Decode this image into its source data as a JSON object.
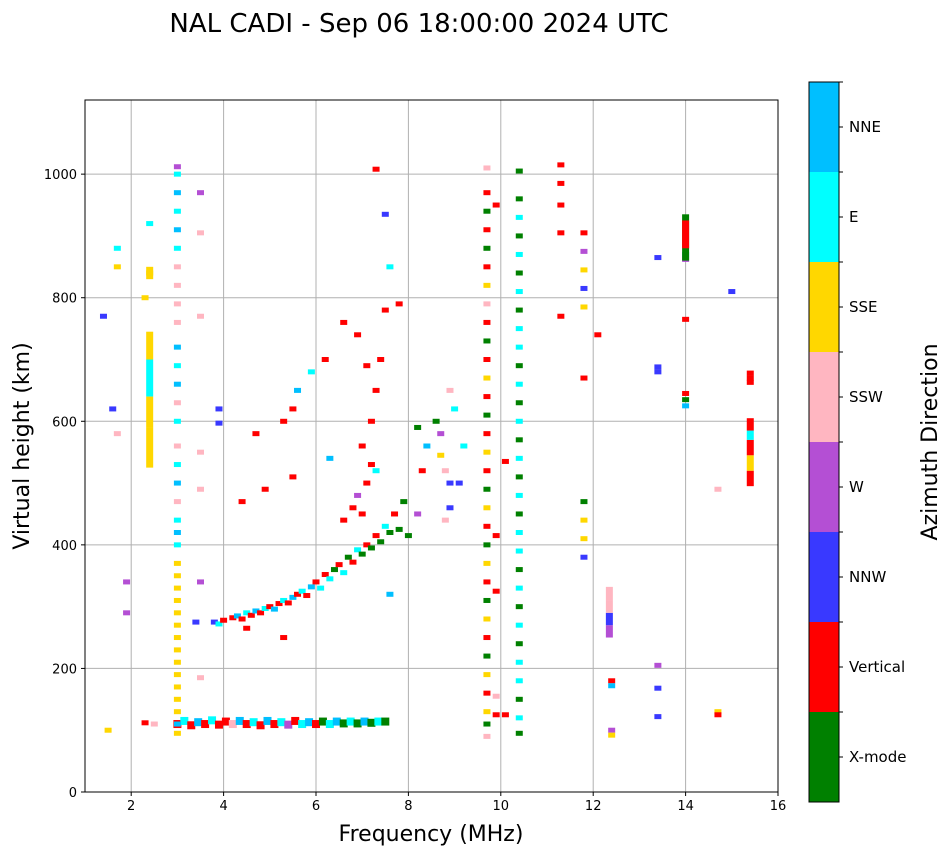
{
  "chart_data": {
    "type": "scatter",
    "title": "NAL CADI - Sep 06 18:00:00 2024 UTC",
    "xlabel": "Frequency (MHz)",
    "ylabel": "Virtual height (km)",
    "xlim": [
      1,
      16
    ],
    "ylim": [
      0,
      1120
    ],
    "xticks": [
      2,
      4,
      6,
      8,
      10,
      12,
      14,
      16
    ],
    "yticks": [
      0,
      200,
      400,
      600,
      800,
      1000
    ],
    "grid": true,
    "colorbar": {
      "label": "Azimuth Direction",
      "placement": "right",
      "categories": [
        "X-mode",
        "Vertical",
        "NNW",
        "W",
        "SSW",
        "SSE",
        "E",
        "NNE"
      ],
      "colors": [
        "#008000",
        "#ff0000",
        "#3939ff",
        "#b44fd4",
        "#ffb6c1",
        "#ffd700",
        "#00ffff",
        "#00bfff"
      ]
    },
    "points_note": "each point: [frequency MHz, virtual height km, category index]",
    "points": [
      [
        3.8,
        275,
        2
      ],
      [
        3.9,
        272,
        6
      ],
      [
        4.0,
        278,
        1
      ],
      [
        4.2,
        282,
        1
      ],
      [
        4.3,
        285,
        7
      ],
      [
        4.4,
        280,
        1
      ],
      [
        4.5,
        290,
        6
      ],
      [
        4.6,
        286,
        1
      ],
      [
        4.7,
        293,
        7
      ],
      [
        4.8,
        290,
        1
      ],
      [
        4.9,
        297,
        6
      ],
      [
        5.0,
        300,
        1
      ],
      [
        5.1,
        296,
        7
      ],
      [
        5.2,
        305,
        1
      ],
      [
        5.3,
        310,
        6
      ],
      [
        5.4,
        306,
        1
      ],
      [
        5.5,
        315,
        7
      ],
      [
        5.6,
        320,
        1
      ],
      [
        5.7,
        325,
        6
      ],
      [
        5.8,
        318,
        1
      ],
      [
        5.9,
        332,
        7
      ],
      [
        6.0,
        340,
        1
      ],
      [
        6.1,
        330,
        6
      ],
      [
        6.2,
        352,
        1
      ],
      [
        6.3,
        345,
        6
      ],
      [
        6.4,
        360,
        0
      ],
      [
        6.5,
        368,
        1
      ],
      [
        6.6,
        355,
        6
      ],
      [
        6.7,
        380,
        0
      ],
      [
        6.8,
        372,
        1
      ],
      [
        6.9,
        392,
        6
      ],
      [
        7.0,
        385,
        0
      ],
      [
        7.1,
        400,
        1
      ],
      [
        7.2,
        395,
        0
      ],
      [
        7.3,
        415,
        1
      ],
      [
        7.4,
        405,
        0
      ],
      [
        7.5,
        430,
        6
      ],
      [
        7.6,
        420,
        0
      ],
      [
        7.7,
        450,
        1
      ],
      [
        7.8,
        425,
        0
      ],
      [
        7.9,
        470,
        0
      ],
      [
        8.0,
        415,
        0
      ],
      [
        6.6,
        440,
        1
      ],
      [
        6.8,
        460,
        1
      ],
      [
        6.9,
        480,
        3
      ],
      [
        7.0,
        450,
        1
      ],
      [
        7.1,
        500,
        1
      ],
      [
        7.2,
        530,
        1
      ],
      [
        7.0,
        560,
        1
      ],
      [
        7.3,
        520,
        6
      ],
      [
        7.2,
        600,
        1
      ],
      [
        7.3,
        650,
        1
      ],
      [
        7.1,
        690,
        1
      ],
      [
        7.4,
        700,
        1
      ],
      [
        6.9,
        740,
        1
      ],
      [
        6.6,
        760,
        1
      ],
      [
        6.2,
        700,
        1
      ],
      [
        5.9,
        680,
        6
      ],
      [
        5.6,
        650,
        7
      ],
      [
        5.5,
        620,
        1
      ],
      [
        5.3,
        600,
        1
      ],
      [
        4.7,
        580,
        1
      ],
      [
        4.9,
        490,
        1
      ],
      [
        4.4,
        470,
        1
      ],
      [
        6.3,
        540,
        7
      ],
      [
        5.5,
        510,
        1
      ],
      [
        5.3,
        250,
        1
      ],
      [
        4.5,
        265,
        1
      ],
      [
        7.6,
        320,
        7
      ],
      [
        7.6,
        850,
        6
      ],
      [
        7.5,
        935,
        2
      ],
      [
        7.3,
        1008,
        1
      ],
      [
        7.5,
        780,
        1
      ],
      [
        7.8,
        790,
        1
      ],
      [
        8.2,
        590,
        0
      ],
      [
        8.3,
        520,
        1
      ],
      [
        8.4,
        560,
        7
      ],
      [
        8.6,
        600,
        0
      ],
      [
        8.7,
        545,
        5
      ],
      [
        8.8,
        520,
        4
      ],
      [
        8.9,
        500,
        2
      ],
      [
        8.9,
        460,
        2
      ],
      [
        8.8,
        440,
        4
      ],
      [
        9.0,
        620,
        6
      ],
      [
        9.1,
        500,
        2
      ],
      [
        9.2,
        560,
        6
      ],
      [
        8.7,
        580,
        3
      ],
      [
        8.2,
        450,
        3
      ],
      [
        8.9,
        650,
        4
      ],
      [
        1.5,
        100,
        5
      ],
      [
        1.7,
        880,
        6
      ],
      [
        1.7,
        850,
        5
      ],
      [
        1.6,
        620,
        2
      ],
      [
        1.7,
        580,
        4
      ],
      [
        1.9,
        340,
        3
      ],
      [
        1.9,
        290,
        3
      ],
      [
        1.4,
        770,
        2
      ],
      [
        2.3,
        800,
        5
      ],
      [
        2.3,
        112,
        1
      ],
      [
        2.5,
        110,
        4
      ],
      [
        2.4,
        920,
        6
      ],
      [
        2.4,
        840,
        5
      ],
      [
        3.5,
        970,
        3
      ],
      [
        3.5,
        905,
        4
      ],
      [
        3.5,
        770,
        4
      ],
      [
        3.5,
        550,
        4
      ],
      [
        3.5,
        490,
        4
      ],
      [
        3.5,
        340,
        3
      ],
      [
        3.5,
        185,
        4
      ],
      [
        3.4,
        275,
        2
      ],
      [
        3.9,
        620,
        2
      ],
      [
        3.9,
        597,
        2
      ],
      [
        11.3,
        1015,
        1
      ],
      [
        11.3,
        985,
        1
      ],
      [
        11.3,
        950,
        1
      ],
      [
        11.3,
        905,
        1
      ],
      [
        11.3,
        770,
        1
      ],
      [
        11.8,
        905,
        1
      ],
      [
        11.8,
        875,
        3
      ],
      [
        11.8,
        845,
        5
      ],
      [
        11.8,
        815,
        2
      ],
      [
        11.8,
        785,
        5
      ],
      [
        11.8,
        670,
        1
      ],
      [
        11.8,
        470,
        0
      ],
      [
        11.8,
        440,
        5
      ],
      [
        11.8,
        410,
        5
      ],
      [
        11.8,
        380,
        2
      ],
      [
        12.1,
        740,
        1
      ],
      [
        12.4,
        180,
        1
      ],
      [
        12.4,
        172,
        7
      ],
      [
        12.4,
        100,
        3
      ],
      [
        12.4,
        92,
        5
      ],
      [
        13.4,
        865,
        2
      ],
      [
        13.4,
        688,
        2
      ],
      [
        13.4,
        680,
        2
      ],
      [
        13.4,
        205,
        3
      ],
      [
        13.4,
        168,
        2
      ],
      [
        13.4,
        122,
        2
      ],
      [
        14.0,
        765,
        1
      ],
      [
        14.0,
        645,
        1
      ],
      [
        14.0,
        635,
        0
      ],
      [
        14.0,
        625,
        7
      ],
      [
        14.0,
        870,
        7
      ],
      [
        14.0,
        862,
        3
      ],
      [
        14.7,
        490,
        4
      ],
      [
        14.7,
        130,
        5
      ],
      [
        14.7,
        125,
        1
      ],
      [
        15.0,
        810,
        2
      ],
      [
        15.4,
        678,
        1
      ],
      [
        15.4,
        670,
        1
      ],
      [
        15.4,
        663,
        1
      ],
      [
        9.9,
        950,
        1
      ],
      [
        10.1,
        535,
        1
      ],
      [
        9.9,
        415,
        1
      ],
      [
        9.9,
        325,
        1
      ],
      [
        9.9,
        125,
        1
      ],
      [
        9.9,
        155,
        4
      ],
      [
        10.1,
        125,
        1
      ]
    ],
    "e_layer_note": "[frequency MHz, virtual height km, category index]",
    "e_layer": [
      [
        3.0,
        110,
        1
      ],
      [
        3.15,
        115,
        6
      ],
      [
        3.3,
        108,
        1
      ],
      [
        3.45,
        113,
        7
      ],
      [
        3.6,
        110,
        1
      ],
      [
        3.75,
        116,
        6
      ],
      [
        3.9,
        109,
        1
      ],
      [
        4.05,
        114,
        1
      ],
      [
        4.2,
        110,
        4
      ],
      [
        4.35,
        115,
        7
      ],
      [
        4.5,
        110,
        1
      ],
      [
        4.65,
        113,
        6
      ],
      [
        4.8,
        108,
        1
      ],
      [
        4.95,
        115,
        7
      ],
      [
        5.1,
        110,
        1
      ],
      [
        5.25,
        113,
        6
      ],
      [
        5.4,
        109,
        3
      ],
      [
        5.55,
        115,
        1
      ],
      [
        5.7,
        110,
        6
      ],
      [
        5.85,
        113,
        7
      ],
      [
        6.0,
        110,
        1
      ],
      [
        6.15,
        114,
        0
      ],
      [
        6.3,
        110,
        6
      ],
      [
        6.45,
        114,
        7
      ],
      [
        6.6,
        111,
        0
      ],
      [
        6.75,
        114,
        6
      ],
      [
        6.9,
        111,
        0
      ],
      [
        7.05,
        114,
        7
      ],
      [
        7.2,
        112,
        0
      ],
      [
        7.35,
        114,
        6
      ],
      [
        7.5,
        114,
        0
      ]
    ],
    "columns_note": "each column: frequency MHz and stacked [height km, category index]",
    "columns": [
      {
        "freq": 3.0,
        "cells": [
          [
            95,
            5
          ],
          [
            110,
            7
          ],
          [
            130,
            5
          ],
          [
            150,
            5
          ],
          [
            170,
            5
          ],
          [
            190,
            5
          ],
          [
            210,
            5
          ],
          [
            230,
            5
          ],
          [
            250,
            5
          ],
          [
            270,
            5
          ],
          [
            290,
            5
          ],
          [
            310,
            5
          ],
          [
            330,
            5
          ],
          [
            350,
            5
          ],
          [
            370,
            5
          ],
          [
            400,
            6
          ],
          [
            420,
            7
          ],
          [
            440,
            6
          ],
          [
            470,
            4
          ],
          [
            500,
            7
          ],
          [
            530,
            6
          ],
          [
            560,
            4
          ],
          [
            600,
            6
          ],
          [
            630,
            4
          ],
          [
            660,
            7
          ],
          [
            690,
            6
          ],
          [
            720,
            7
          ],
          [
            760,
            4
          ],
          [
            790,
            4
          ],
          [
            820,
            4
          ],
          [
            850,
            4
          ],
          [
            880,
            6
          ],
          [
            910,
            7
          ],
          [
            940,
            6
          ],
          [
            970,
            7
          ],
          [
            1000,
            6
          ],
          [
            1012,
            3
          ]
        ]
      },
      {
        "freq": 9.7,
        "cells": [
          [
            90,
            4
          ],
          [
            110,
            0
          ],
          [
            130,
            5
          ],
          [
            160,
            1
          ],
          [
            190,
            5
          ],
          [
            220,
            0
          ],
          [
            250,
            1
          ],
          [
            280,
            5
          ],
          [
            310,
            0
          ],
          [
            340,
            1
          ],
          [
            370,
            5
          ],
          [
            400,
            0
          ],
          [
            430,
            1
          ],
          [
            460,
            5
          ],
          [
            490,
            0
          ],
          [
            520,
            1
          ],
          [
            550,
            5
          ],
          [
            580,
            1
          ],
          [
            610,
            0
          ],
          [
            640,
            1
          ],
          [
            670,
            5
          ],
          [
            700,
            1
          ],
          [
            730,
            0
          ],
          [
            760,
            1
          ],
          [
            790,
            4
          ],
          [
            820,
            5
          ],
          [
            850,
            1
          ],
          [
            880,
            0
          ],
          [
            910,
            1
          ],
          [
            940,
            0
          ],
          [
            970,
            1
          ],
          [
            1010,
            4
          ]
        ]
      },
      {
        "freq": 10.4,
        "cells": [
          [
            95,
            0
          ],
          [
            120,
            6
          ],
          [
            150,
            0
          ],
          [
            180,
            6
          ],
          [
            210,
            6
          ],
          [
            240,
            0
          ],
          [
            270,
            6
          ],
          [
            300,
            0
          ],
          [
            330,
            6
          ],
          [
            360,
            0
          ],
          [
            390,
            6
          ],
          [
            420,
            6
          ],
          [
            450,
            0
          ],
          [
            480,
            6
          ],
          [
            510,
            0
          ],
          [
            540,
            6
          ],
          [
            570,
            0
          ],
          [
            600,
            6
          ],
          [
            630,
            0
          ],
          [
            660,
            6
          ],
          [
            690,
            0
          ],
          [
            720,
            6
          ],
          [
            750,
            6
          ],
          [
            780,
            0
          ],
          [
            810,
            6
          ],
          [
            840,
            0
          ],
          [
            870,
            6
          ],
          [
            900,
            0
          ],
          [
            930,
            6
          ],
          [
            960,
            0
          ],
          [
            1005,
            0
          ]
        ]
      }
    ],
    "segments_note": "vertical bars: [frequency MHz, low km, high km, category index]",
    "segments": [
      [
        2.4,
        525,
        590,
        5
      ],
      [
        2.4,
        640,
        700,
        6
      ],
      [
        2.4,
        590,
        640,
        5
      ],
      [
        2.4,
        700,
        745,
        5
      ],
      [
        2.4,
        830,
        850,
        5
      ],
      [
        14.0,
        860,
        935,
        0
      ],
      [
        14.0,
        880,
        925,
        1
      ],
      [
        15.4,
        495,
        520,
        1
      ],
      [
        15.4,
        520,
        545,
        5
      ],
      [
        15.4,
        545,
        570,
        1
      ],
      [
        15.4,
        570,
        585,
        6
      ],
      [
        15.4,
        585,
        605,
        1
      ],
      [
        12.35,
        250,
        270,
        3
      ],
      [
        12.35,
        270,
        290,
        2
      ],
      [
        12.35,
        290,
        310,
        4
      ],
      [
        12.35,
        310,
        332,
        4
      ]
    ]
  }
}
